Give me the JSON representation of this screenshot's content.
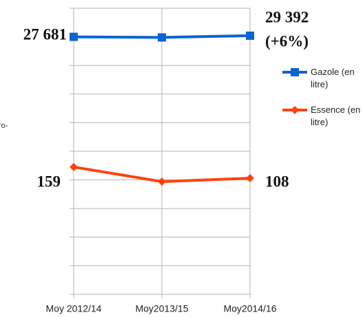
{
  "chart_data": {
    "type": "line",
    "y_label": "ro-",
    "categories": [
      "Moy 2012/14",
      "Moy2013/15",
      "Moy2014/16"
    ],
    "series": [
      {
        "name": "Gazole (en litre)",
        "color": "#0a64d2",
        "marker": "square",
        "values": [
          9.0,
          8.98,
          9.04
        ]
      },
      {
        "name": "Essence (en litre)",
        "color": "#ff420e",
        "marker": "diamond",
        "values": [
          4.45,
          3.94,
          4.06
        ]
      }
    ],
    "annotations": [
      "27 681",
      "29 392",
      "(+6%)",
      "159",
      "108"
    ],
    "ylim": [
      0,
      10
    ],
    "yticks": [
      0,
      1,
      2,
      3,
      4,
      5,
      6,
      7,
      8,
      9,
      10
    ],
    "grid": true,
    "legend": "right"
  }
}
